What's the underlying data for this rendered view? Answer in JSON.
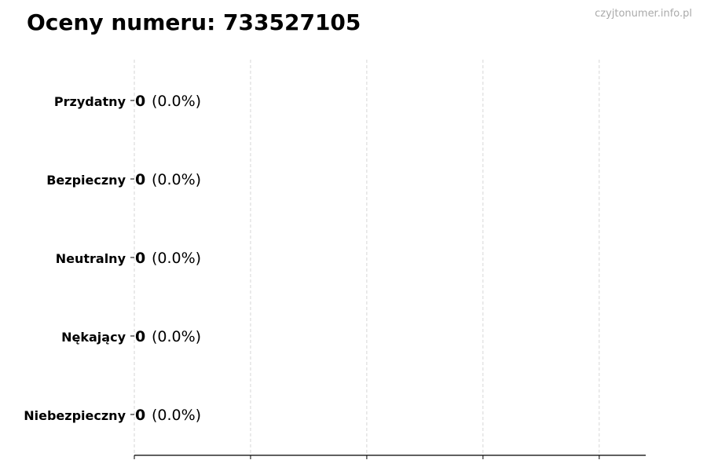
{
  "title": "Oceny numeru: 733527105",
  "watermark": "czyjtonumer.info.pl",
  "chart_data": {
    "type": "bar",
    "orientation": "horizontal",
    "title": "Oceny numeru: 733527105",
    "categories": [
      "Przydatny",
      "Bezpieczny",
      "Neutralny",
      "Nękający",
      "Niebezpieczny"
    ],
    "values": [
      0,
      0,
      0,
      0,
      0
    ],
    "data_labels": [
      {
        "count": "0",
        "percent": "(0.0%)"
      },
      {
        "count": "0",
        "percent": "(0.0%)"
      },
      {
        "count": "0",
        "percent": "(0.0%)"
      },
      {
        "count": "0",
        "percent": "(0.0%)"
      },
      {
        "count": "0",
        "percent": "(0.0%)"
      }
    ],
    "xticks": [
      0,
      1,
      2,
      3,
      4
    ],
    "xtick_labels_shown": false,
    "xlim": [
      0,
      4.4
    ],
    "grid": "vertical dashed",
    "xlabel": "",
    "ylabel": ""
  }
}
